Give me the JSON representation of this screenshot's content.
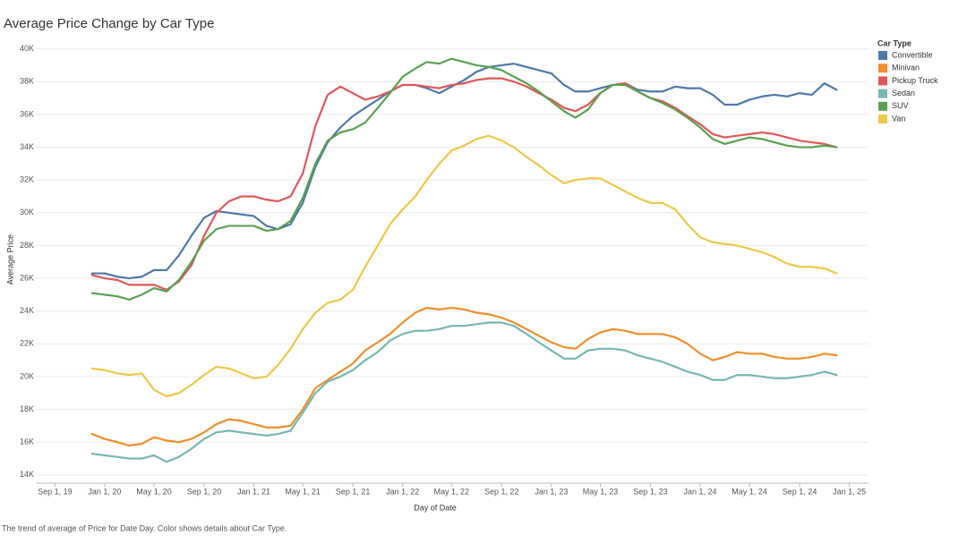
{
  "chart_data": {
    "type": "line",
    "title": "Average Price Change by Car Type",
    "x_label": "Day of Date",
    "y_label": "Average Price",
    "caption": "The trend of average of Price for Date Day.  Color shows details about Car Type.",
    "legend_title": "Car Type",
    "legend": "right",
    "grid": true,
    "x": [
      "2019-12-01",
      "2020-01-01",
      "2020-02-01",
      "2020-03-01",
      "2020-04-01",
      "2020-05-01",
      "2020-06-01",
      "2020-07-01",
      "2020-08-01",
      "2020-09-01",
      "2020-10-01",
      "2020-11-01",
      "2020-12-01",
      "2021-01-01",
      "2021-02-01",
      "2021-03-01",
      "2021-04-01",
      "2021-05-01",
      "2021-06-01",
      "2021-07-01",
      "2021-08-01",
      "2021-09-01",
      "2021-10-01",
      "2021-11-01",
      "2021-12-01",
      "2022-01-01",
      "2022-02-01",
      "2022-03-01",
      "2022-04-01",
      "2022-05-01",
      "2022-06-01",
      "2022-07-01",
      "2022-08-01",
      "2022-09-01",
      "2022-10-01",
      "2022-11-01",
      "2022-12-01",
      "2023-01-01",
      "2023-02-01",
      "2023-03-01",
      "2023-04-01",
      "2023-05-01",
      "2023-06-01",
      "2023-07-01",
      "2023-08-01",
      "2023-09-01",
      "2023-10-01",
      "2023-11-01",
      "2023-12-01",
      "2024-01-01",
      "2024-02-01",
      "2024-03-01",
      "2024-04-01",
      "2024-05-01",
      "2024-06-01",
      "2024-07-01",
      "2024-08-01",
      "2024-09-01",
      "2024-10-01",
      "2024-11-01",
      "2024-12-01"
    ],
    "xlim": [
      "2019-07-16",
      "2025-02-17"
    ],
    "xticks": [
      {
        "value": "2019-09-01",
        "label": "Sep 1, 19"
      },
      {
        "value": "2020-01-01",
        "label": "Jan 1, 20"
      },
      {
        "value": "2020-05-01",
        "label": "May 1, 20"
      },
      {
        "value": "2020-09-01",
        "label": "Sep 1, 20"
      },
      {
        "value": "2021-01-01",
        "label": "Jan 1, 21"
      },
      {
        "value": "2021-05-01",
        "label": "May 1, 21"
      },
      {
        "value": "2021-09-01",
        "label": "Sep 1, 21"
      },
      {
        "value": "2022-01-01",
        "label": "Jan 1, 22"
      },
      {
        "value": "2022-05-01",
        "label": "May 1, 22"
      },
      {
        "value": "2022-09-01",
        "label": "Sep 1, 22"
      },
      {
        "value": "2023-01-01",
        "label": "Jan 1, 23"
      },
      {
        "value": "2023-05-01",
        "label": "May 1, 23"
      },
      {
        "value": "2023-09-01",
        "label": "Sep 1, 23"
      },
      {
        "value": "2024-01-01",
        "label": "Jan 1, 24"
      },
      {
        "value": "2024-05-01",
        "label": "May 1, 24"
      },
      {
        "value": "2024-09-01",
        "label": "Sep 1, 24"
      },
      {
        "value": "2025-01-01",
        "label": "Jan 1, 25"
      }
    ],
    "ylim": [
      13500,
      40800
    ],
    "yticks": [
      {
        "value": 14000,
        "label": "14K"
      },
      {
        "value": 16000,
        "label": "16K"
      },
      {
        "value": 18000,
        "label": "18K"
      },
      {
        "value": 20000,
        "label": "20K"
      },
      {
        "value": 22000,
        "label": "22K"
      },
      {
        "value": 24000,
        "label": "24K"
      },
      {
        "value": 26000,
        "label": "26K"
      },
      {
        "value": 28000,
        "label": "28K"
      },
      {
        "value": 30000,
        "label": "30K"
      },
      {
        "value": 32000,
        "label": "32K"
      },
      {
        "value": 34000,
        "label": "34K"
      },
      {
        "value": 36000,
        "label": "36K"
      },
      {
        "value": 38000,
        "label": "38K"
      },
      {
        "value": 40000,
        "label": "40K"
      }
    ],
    "series": [
      {
        "name": "Convertible",
        "color": "#4e79a7",
        "values": [
          26300,
          26300,
          26100,
          26000,
          26100,
          26500,
          26500,
          27400,
          28600,
          29700,
          30100,
          30000,
          29900,
          29800,
          29200,
          29000,
          29300,
          30600,
          32800,
          34300,
          35200,
          35900,
          36400,
          36900,
          37400,
          37800,
          37800,
          37600,
          37300,
          37700,
          38100,
          38600,
          38900,
          39000,
          39100,
          38900,
          38700,
          38500,
          37800,
          37400,
          37400,
          37600,
          37800,
          37900,
          37500,
          37400,
          37400,
          37700,
          37600,
          37600,
          37200,
          36600,
          36600,
          36900,
          37100,
          37200,
          37100,
          37300,
          37200,
          37900,
          37500
        ]
      },
      {
        "name": "Minivan",
        "color": "#f28e2b",
        "values": [
          16500,
          16200,
          16000,
          15800,
          15900,
          16300,
          16100,
          16000,
          16200,
          16600,
          17100,
          17400,
          17300,
          17100,
          16900,
          16900,
          17000,
          18000,
          19300,
          19800,
          20300,
          20800,
          21600,
          22100,
          22600,
          23300,
          23900,
          24200,
          24100,
          24200,
          24100,
          23900,
          23800,
          23600,
          23300,
          22900,
          22500,
          22100,
          21800,
          21700,
          22300,
          22700,
          22900,
          22800,
          22600,
          22600,
          22600,
          22400,
          22000,
          21400,
          21000,
          21200,
          21500,
          21400,
          21400,
          21200,
          21100,
          21100,
          21200,
          21400,
          21300
        ]
      },
      {
        "name": "Pickup Truck",
        "color": "#e15759",
        "values": [
          26200,
          26000,
          25900,
          25600,
          25600,
          25600,
          25300,
          25800,
          26800,
          28600,
          30000,
          30700,
          31000,
          31000,
          30800,
          30700,
          31000,
          32400,
          35300,
          37200,
          37700,
          37300,
          36900,
          37100,
          37400,
          37800,
          37800,
          37700,
          37600,
          37800,
          37900,
          38100,
          38200,
          38200,
          38000,
          37700,
          37300,
          36900,
          36400,
          36200,
          36600,
          37300,
          37800,
          37900,
          37400,
          37000,
          36800,
          36400,
          35900,
          35400,
          34800,
          34600,
          34700,
          34800,
          34900,
          34800,
          34600,
          34400,
          34300,
          34200,
          34000
        ]
      },
      {
        "name": "Sedan",
        "color": "#76b7b2",
        "values": [
          15300,
          15200,
          15100,
          15000,
          15000,
          15200,
          14800,
          15100,
          15600,
          16200,
          16600,
          16700,
          16600,
          16500,
          16400,
          16500,
          16700,
          17800,
          19000,
          19700,
          20000,
          20400,
          21000,
          21500,
          22200,
          22600,
          22800,
          22800,
          22900,
          23100,
          23100,
          23200,
          23300,
          23300,
          23100,
          22600,
          22100,
          21600,
          21100,
          21100,
          21600,
          21700,
          21700,
          21600,
          21300,
          21100,
          20900,
          20600,
          20300,
          20100,
          19800,
          19800,
          20100,
          20100,
          20000,
          19900,
          19900,
          20000,
          20100,
          20300,
          20100
        ]
      },
      {
        "name": "SUV",
        "color": "#59a14f",
        "values": [
          25100,
          25000,
          24900,
          24700,
          25000,
          25400,
          25200,
          25900,
          27000,
          28300,
          29000,
          29200,
          29200,
          29200,
          28900,
          29000,
          29500,
          30900,
          33000,
          34400,
          34900,
          35100,
          35500,
          36400,
          37300,
          38300,
          38800,
          39200,
          39100,
          39400,
          39200,
          39000,
          38900,
          38700,
          38300,
          37900,
          37400,
          36800,
          36200,
          35800,
          36300,
          37300,
          37800,
          37800,
          37400,
          37000,
          36700,
          36300,
          35800,
          35200,
          34500,
          34200,
          34400,
          34600,
          34500,
          34300,
          34100,
          34000,
          34000,
          34100,
          34000
        ]
      },
      {
        "name": "Van",
        "color": "#edc948",
        "values": [
          20500,
          20400,
          20200,
          20100,
          20200,
          19200,
          18800,
          19000,
          19500,
          20100,
          20600,
          20500,
          20200,
          19900,
          20000,
          20700,
          21700,
          22900,
          23900,
          24500,
          24700,
          25300,
          26700,
          28000,
          29300,
          30200,
          31000,
          32000,
          33000,
          33800,
          34100,
          34500,
          34700,
          34400,
          34000,
          33400,
          32900,
          32300,
          31800,
          32000,
          32100,
          32100,
          31700,
          31300,
          30900,
          30600,
          30600,
          30200,
          29300,
          28500,
          28200,
          28100,
          28000,
          27800,
          27600,
          27300,
          26900,
          26700,
          26700,
          26600,
          26300
        ]
      }
    ]
  }
}
